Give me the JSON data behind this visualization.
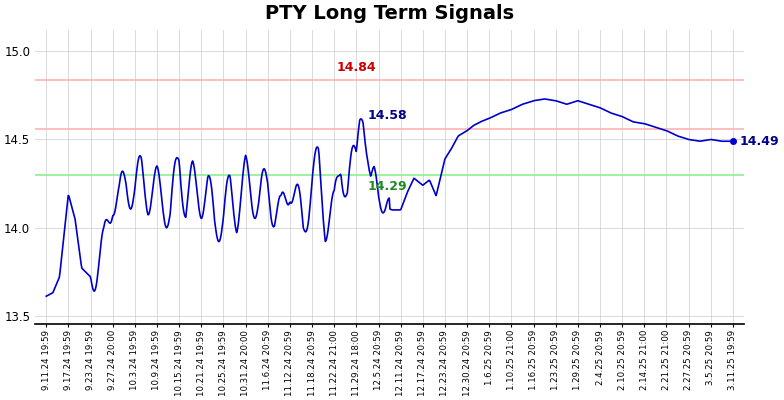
{
  "title": "PTY Long Term Signals",
  "title_fontsize": 14,
  "title_fontweight": "bold",
  "line_color": "#0000CD",
  "line_width": 1.2,
  "red_line_upper": 14.84,
  "red_line_lower": 14.56,
  "green_line": 14.3,
  "red_fill_color": "#ffcccc",
  "green_fill_color": "#90EE90",
  "ann_red_color": "#cc0000",
  "ann_blue_color": "#00008B",
  "ann_green_color": "#228B22",
  "ylim": [
    13.45,
    15.12
  ],
  "yticks": [
    13.5,
    14.0,
    14.5,
    15.0
  ],
  "bg_color": "#ffffff",
  "grid_color": "#cccccc",
  "tick_labels": [
    "9.11.24 19:59",
    "9.17.24 19:59",
    "9.23.24 19:59",
    "9.27.24 20:00",
    "10.3.24 19:59",
    "10.9.24 19:59",
    "10.15.24 19:59",
    "10.21.24 19:59",
    "10.25.24 19:59",
    "10.31.24 20:00",
    "11.6.24 20:59",
    "11.12.24 20:59",
    "11.18.24 20:59",
    "11.22.24 21:00",
    "11.29.24 18:00",
    "12.5.24 20:59",
    "12.11.24 20:59",
    "12.17.24 20:59",
    "12.23.24 20:59",
    "12.30.24 20:59",
    "1.6.25 20:59",
    "1.10.25 21:00",
    "1.16.25 20:59",
    "1.23.25 20:59",
    "1.29.25 20:59",
    "2.4.25 20:59",
    "2.10.25 20:59",
    "2.14.25 21:00",
    "2.21.25 21:00",
    "2.27.25 20:59",
    "3.5.25 20:59",
    "3.11.25 19:59"
  ],
  "anchors_x": [
    0,
    0.3,
    0.6,
    1.0,
    1.3,
    1.6,
    2.0,
    2.3,
    2.6,
    3.0,
    3.3,
    3.6,
    4.0,
    4.3,
    4.6,
    5.0,
    5.3,
    5.6,
    6.0,
    6.3,
    6.6,
    7.0,
    7.3,
    7.6,
    8.0,
    8.3,
    8.6,
    9.0,
    9.3,
    9.6,
    10.0,
    10.3,
    10.6,
    11.0,
    11.3,
    11.6,
    12.0,
    12.3,
    12.6,
    13.0,
    13.3,
    13.6,
    14.0,
    14.15,
    14.3,
    14.5,
    14.65,
    14.8,
    15.0,
    15.3,
    15.6,
    16.0,
    16.3,
    16.6,
    17.0,
    17.3,
    17.6,
    18.0,
    18.3,
    18.6,
    19.0,
    19.3,
    19.6,
    20.0,
    20.5,
    21.0,
    21.5,
    22.0,
    22.5,
    23.0,
    23.5,
    24.0,
    24.5,
    25.0,
    25.5,
    26.0,
    26.5,
    27.0,
    27.5,
    28.0,
    28.5,
    29.0,
    29.5,
    30.0,
    30.5,
    31.0
  ],
  "anchors_y": [
    13.61,
    13.63,
    13.72,
    14.19,
    14.05,
    13.77,
    13.72,
    13.8,
    13.87,
    14.2,
    14.15,
    14.25,
    14.22,
    14.3,
    14.2,
    14.22,
    14.16,
    14.08,
    14.38,
    14.15,
    14.25,
    14.18,
    14.2,
    14.04,
    14.06,
    14.2,
    14.1,
    14.28,
    14.2,
    14.15,
    14.25,
    14.1,
    14.05,
    14.28,
    14.15,
    14.0,
    14.27,
    14.35,
    14.05,
    14.08,
    14.4,
    14.2,
    14.43,
    14.55,
    14.58,
    14.45,
    14.3,
    14.29,
    14.18,
    14.12,
    14.1,
    14.1,
    14.2,
    14.28,
    14.24,
    14.27,
    14.18,
    14.39,
    14.45,
    14.52,
    14.55,
    14.58,
    14.6,
    14.62,
    14.65,
    14.67,
    14.7,
    14.72,
    14.73,
    14.72,
    14.7,
    14.72,
    14.7,
    14.68,
    14.65,
    14.63,
    14.6,
    14.59,
    14.57,
    14.55,
    14.52,
    14.5,
    14.49,
    14.5,
    14.49,
    14.49
  ]
}
